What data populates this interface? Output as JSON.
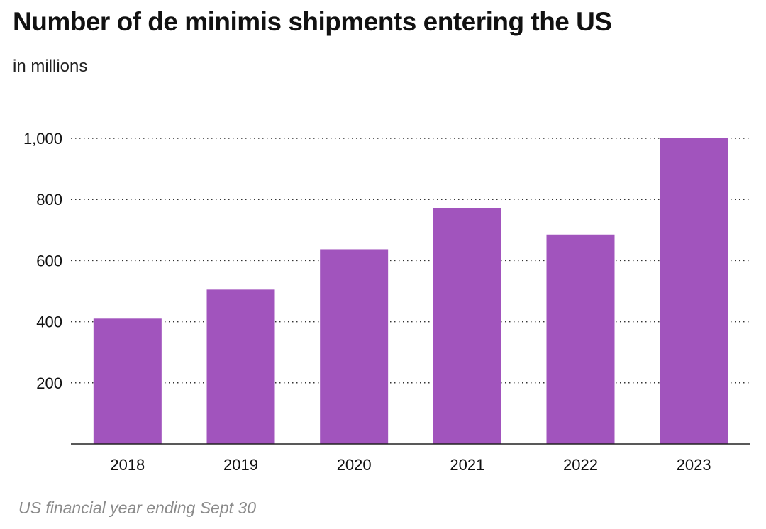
{
  "header": {
    "title": "Number of de minimis shipments entering the US",
    "subtitle": "in millions"
  },
  "footer": {
    "note": "US financial year ending Sept 30"
  },
  "colors": {
    "bar": "#a154bd",
    "axis": "#222222",
    "grid": "#333333"
  },
  "chart_data": {
    "type": "bar",
    "title": "Number of de minimis shipments entering the US",
    "subtitle": "in millions",
    "xlabel": "",
    "ylabel": "",
    "categories": [
      "2018",
      "2019",
      "2020",
      "2021",
      "2022",
      "2023"
    ],
    "values": [
      410,
      505,
      637,
      771,
      685,
      1000
    ],
    "yticks": [
      200,
      400,
      600,
      800,
      1000
    ],
    "ytick_labels": [
      "200",
      "400",
      "600",
      "800",
      "1,000"
    ],
    "ylim": [
      0,
      1000
    ],
    "grid": "dotted horizontal"
  }
}
